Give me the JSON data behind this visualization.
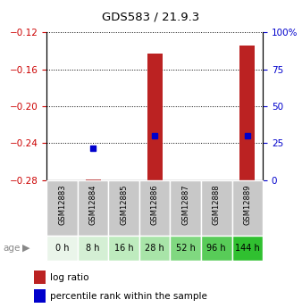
{
  "title": "GDS583 / 21.9.3",
  "samples": [
    "GSM12883",
    "GSM12884",
    "GSM12885",
    "GSM12886",
    "GSM12887",
    "GSM12888",
    "GSM12889"
  ],
  "ages": [
    "0 h",
    "8 h",
    "16 h",
    "28 h",
    "52 h",
    "96 h",
    "144 h"
  ],
  "age_colors": [
    "#eaf5ea",
    "#d4efd4",
    "#beebbe",
    "#a8e4a8",
    "#80d880",
    "#58cc58",
    "#30c030"
  ],
  "ylim_left": [
    -0.28,
    -0.12
  ],
  "ylim_right": [
    0,
    100
  ],
  "yticks_left": [
    -0.28,
    -0.24,
    -0.2,
    -0.16,
    -0.12
  ],
  "yticks_right": [
    0,
    25,
    50,
    75,
    100
  ],
  "ytick_labels_right": [
    "0",
    "25",
    "50",
    "75",
    "100%"
  ],
  "log_ratio": [
    null,
    -0.279,
    null,
    -0.143,
    null,
    null,
    -0.134
  ],
  "log_ratio_base": -0.28,
  "percentile_rank_y": [
    null,
    -0.245,
    null,
    -0.232,
    null,
    null,
    -0.232
  ],
  "bar_color": "#bb2222",
  "dot_color": "#0000cc",
  "grid_color": "#000000",
  "left_tick_color": "#cc0000",
  "right_tick_color": "#0000cc",
  "bar_width": 0.5,
  "gsm_row_color": "#c8c8c8",
  "legend_items": [
    "log ratio",
    "percentile rank within the sample"
  ]
}
